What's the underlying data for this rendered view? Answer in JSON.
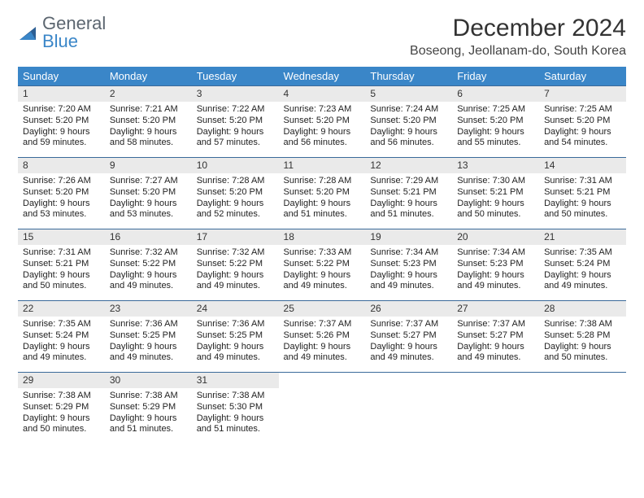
{
  "logo": {
    "word1": "General",
    "word2": "Blue"
  },
  "title": "December 2024",
  "location": "Boseong, Jeollanam-do, South Korea",
  "colors": {
    "header_bg": "#3a86c8",
    "row_border": "#3a6a9a",
    "daynum_bg": "#eaeaea"
  },
  "weekdays": [
    "Sunday",
    "Monday",
    "Tuesday",
    "Wednesday",
    "Thursday",
    "Friday",
    "Saturday"
  ],
  "days": [
    {
      "n": "1",
      "sr": "Sunrise: 7:20 AM",
      "ss": "Sunset: 5:20 PM",
      "dl1": "Daylight: 9 hours",
      "dl2": "and 59 minutes."
    },
    {
      "n": "2",
      "sr": "Sunrise: 7:21 AM",
      "ss": "Sunset: 5:20 PM",
      "dl1": "Daylight: 9 hours",
      "dl2": "and 58 minutes."
    },
    {
      "n": "3",
      "sr": "Sunrise: 7:22 AM",
      "ss": "Sunset: 5:20 PM",
      "dl1": "Daylight: 9 hours",
      "dl2": "and 57 minutes."
    },
    {
      "n": "4",
      "sr": "Sunrise: 7:23 AM",
      "ss": "Sunset: 5:20 PM",
      "dl1": "Daylight: 9 hours",
      "dl2": "and 56 minutes."
    },
    {
      "n": "5",
      "sr": "Sunrise: 7:24 AM",
      "ss": "Sunset: 5:20 PM",
      "dl1": "Daylight: 9 hours",
      "dl2": "and 56 minutes."
    },
    {
      "n": "6",
      "sr": "Sunrise: 7:25 AM",
      "ss": "Sunset: 5:20 PM",
      "dl1": "Daylight: 9 hours",
      "dl2": "and 55 minutes."
    },
    {
      "n": "7",
      "sr": "Sunrise: 7:25 AM",
      "ss": "Sunset: 5:20 PM",
      "dl1": "Daylight: 9 hours",
      "dl2": "and 54 minutes."
    },
    {
      "n": "8",
      "sr": "Sunrise: 7:26 AM",
      "ss": "Sunset: 5:20 PM",
      "dl1": "Daylight: 9 hours",
      "dl2": "and 53 minutes."
    },
    {
      "n": "9",
      "sr": "Sunrise: 7:27 AM",
      "ss": "Sunset: 5:20 PM",
      "dl1": "Daylight: 9 hours",
      "dl2": "and 53 minutes."
    },
    {
      "n": "10",
      "sr": "Sunrise: 7:28 AM",
      "ss": "Sunset: 5:20 PM",
      "dl1": "Daylight: 9 hours",
      "dl2": "and 52 minutes."
    },
    {
      "n": "11",
      "sr": "Sunrise: 7:28 AM",
      "ss": "Sunset: 5:20 PM",
      "dl1": "Daylight: 9 hours",
      "dl2": "and 51 minutes."
    },
    {
      "n": "12",
      "sr": "Sunrise: 7:29 AM",
      "ss": "Sunset: 5:21 PM",
      "dl1": "Daylight: 9 hours",
      "dl2": "and 51 minutes."
    },
    {
      "n": "13",
      "sr": "Sunrise: 7:30 AM",
      "ss": "Sunset: 5:21 PM",
      "dl1": "Daylight: 9 hours",
      "dl2": "and 50 minutes."
    },
    {
      "n": "14",
      "sr": "Sunrise: 7:31 AM",
      "ss": "Sunset: 5:21 PM",
      "dl1": "Daylight: 9 hours",
      "dl2": "and 50 minutes."
    },
    {
      "n": "15",
      "sr": "Sunrise: 7:31 AM",
      "ss": "Sunset: 5:21 PM",
      "dl1": "Daylight: 9 hours",
      "dl2": "and 50 minutes."
    },
    {
      "n": "16",
      "sr": "Sunrise: 7:32 AM",
      "ss": "Sunset: 5:22 PM",
      "dl1": "Daylight: 9 hours",
      "dl2": "and 49 minutes."
    },
    {
      "n": "17",
      "sr": "Sunrise: 7:32 AM",
      "ss": "Sunset: 5:22 PM",
      "dl1": "Daylight: 9 hours",
      "dl2": "and 49 minutes."
    },
    {
      "n": "18",
      "sr": "Sunrise: 7:33 AM",
      "ss": "Sunset: 5:22 PM",
      "dl1": "Daylight: 9 hours",
      "dl2": "and 49 minutes."
    },
    {
      "n": "19",
      "sr": "Sunrise: 7:34 AM",
      "ss": "Sunset: 5:23 PM",
      "dl1": "Daylight: 9 hours",
      "dl2": "and 49 minutes."
    },
    {
      "n": "20",
      "sr": "Sunrise: 7:34 AM",
      "ss": "Sunset: 5:23 PM",
      "dl1": "Daylight: 9 hours",
      "dl2": "and 49 minutes."
    },
    {
      "n": "21",
      "sr": "Sunrise: 7:35 AM",
      "ss": "Sunset: 5:24 PM",
      "dl1": "Daylight: 9 hours",
      "dl2": "and 49 minutes."
    },
    {
      "n": "22",
      "sr": "Sunrise: 7:35 AM",
      "ss": "Sunset: 5:24 PM",
      "dl1": "Daylight: 9 hours",
      "dl2": "and 49 minutes."
    },
    {
      "n": "23",
      "sr": "Sunrise: 7:36 AM",
      "ss": "Sunset: 5:25 PM",
      "dl1": "Daylight: 9 hours",
      "dl2": "and 49 minutes."
    },
    {
      "n": "24",
      "sr": "Sunrise: 7:36 AM",
      "ss": "Sunset: 5:25 PM",
      "dl1": "Daylight: 9 hours",
      "dl2": "and 49 minutes."
    },
    {
      "n": "25",
      "sr": "Sunrise: 7:37 AM",
      "ss": "Sunset: 5:26 PM",
      "dl1": "Daylight: 9 hours",
      "dl2": "and 49 minutes."
    },
    {
      "n": "26",
      "sr": "Sunrise: 7:37 AM",
      "ss": "Sunset: 5:27 PM",
      "dl1": "Daylight: 9 hours",
      "dl2": "and 49 minutes."
    },
    {
      "n": "27",
      "sr": "Sunrise: 7:37 AM",
      "ss": "Sunset: 5:27 PM",
      "dl1": "Daylight: 9 hours",
      "dl2": "and 49 minutes."
    },
    {
      "n": "28",
      "sr": "Sunrise: 7:38 AM",
      "ss": "Sunset: 5:28 PM",
      "dl1": "Daylight: 9 hours",
      "dl2": "and 50 minutes."
    },
    {
      "n": "29",
      "sr": "Sunrise: 7:38 AM",
      "ss": "Sunset: 5:29 PM",
      "dl1": "Daylight: 9 hours",
      "dl2": "and 50 minutes."
    },
    {
      "n": "30",
      "sr": "Sunrise: 7:38 AM",
      "ss": "Sunset: 5:29 PM",
      "dl1": "Daylight: 9 hours",
      "dl2": "and 51 minutes."
    },
    {
      "n": "31",
      "sr": "Sunrise: 7:38 AM",
      "ss": "Sunset: 5:30 PM",
      "dl1": "Daylight: 9 hours",
      "dl2": "and 51 minutes."
    }
  ]
}
